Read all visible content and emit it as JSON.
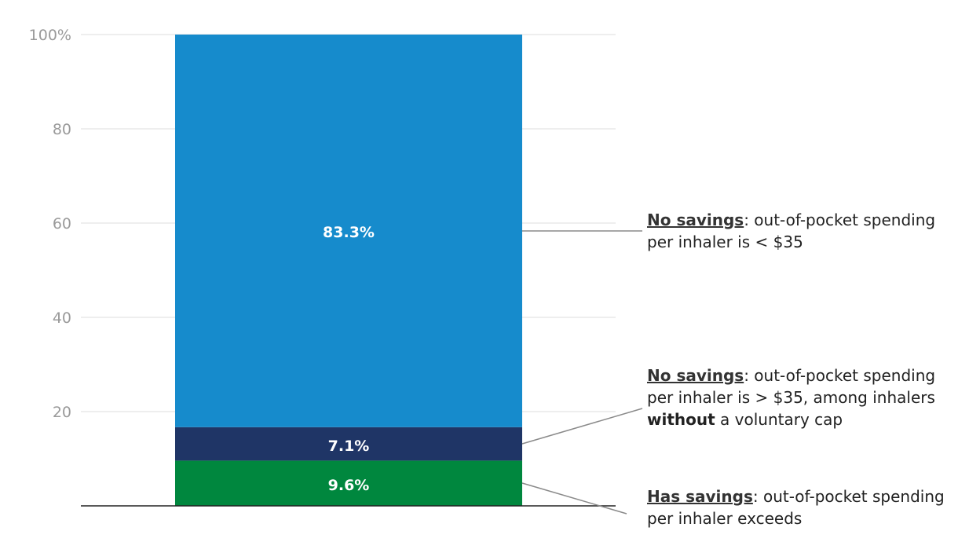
{
  "chart_data": {
    "type": "bar",
    "stacked": true,
    "categories": [
      ""
    ],
    "series": [
      {
        "key": "has_savings",
        "values": [
          9.6
        ],
        "label": "9.6%",
        "color": "#00873e"
      },
      {
        "key": "no_savings_over35",
        "values": [
          7.1
        ],
        "label": "7.1%",
        "color": "#1f3566"
      },
      {
        "key": "no_savings_under35",
        "values": [
          83.3
        ],
        "label": "83.3%",
        "color": "#168bcc"
      }
    ],
    "ylim": [
      0,
      100
    ],
    "yticks": [
      {
        "value": 100,
        "label": "100%"
      },
      {
        "value": 80,
        "label": "80"
      },
      {
        "value": 60,
        "label": "60"
      },
      {
        "value": 40,
        "label": "40"
      },
      {
        "value": 20,
        "label": "20"
      }
    ],
    "grid": true,
    "gridColor": "#dddddd",
    "axisColor": "#222222"
  },
  "annotations": {
    "no_savings_under35": {
      "lead": "No savings",
      "text": ": out-of-pocket spending per inhaler is < $35"
    },
    "no_savings_over35": {
      "lead": "No savings",
      "text1": ": out-of-pocket spending per inhaler is > $35, among inhalers ",
      "bold": "without",
      "text2": " a voluntary cap"
    },
    "has_savings": {
      "lead": "Has savings",
      "text": ": out-of-pocket spending per inhaler exceeds"
    }
  }
}
